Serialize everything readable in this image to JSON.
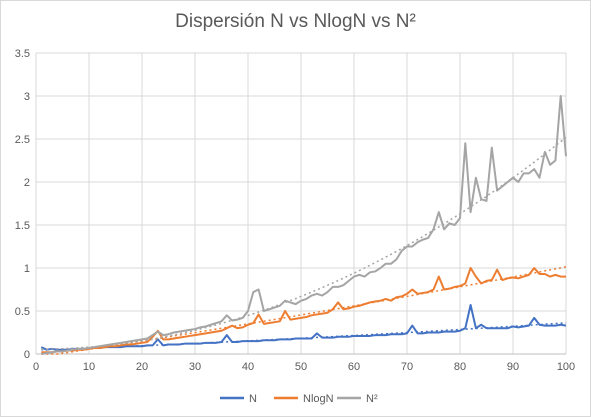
{
  "chart_data": {
    "type": "line",
    "title": "Dispersión N vs NlogN vs N²",
    "xlabel": "",
    "ylabel": "",
    "xlim": [
      0,
      100
    ],
    "ylim": [
      0,
      3.5
    ],
    "x_ticks": [
      0,
      10,
      20,
      30,
      40,
      50,
      60,
      70,
      80,
      90,
      100
    ],
    "y_ticks": [
      0,
      0.5,
      1,
      1.5,
      2,
      2.5,
      3,
      3.5
    ],
    "y_tick_labels": [
      "0",
      "0.5",
      "1",
      "1.5",
      "2",
      "2.5",
      "3",
      "3.5"
    ],
    "grid": true,
    "legend_position": "bottom",
    "trendlines": true,
    "x": [
      1,
      2,
      3,
      4,
      5,
      6,
      7,
      8,
      9,
      10,
      11,
      12,
      13,
      14,
      15,
      16,
      17,
      18,
      19,
      20,
      21,
      22,
      23,
      24,
      25,
      26,
      27,
      28,
      29,
      30,
      31,
      32,
      33,
      34,
      35,
      36,
      37,
      38,
      39,
      40,
      41,
      42,
      43,
      44,
      45,
      46,
      47,
      48,
      49,
      50,
      51,
      52,
      53,
      54,
      55,
      56,
      57,
      58,
      59,
      60,
      61,
      62,
      63,
      64,
      65,
      66,
      67,
      68,
      69,
      70,
      71,
      72,
      73,
      74,
      75,
      76,
      77,
      78,
      79,
      80,
      81,
      82,
      83,
      84,
      85,
      86,
      87,
      88,
      89,
      90,
      91,
      92,
      93,
      94,
      95,
      96,
      97,
      98,
      99,
      100
    ],
    "series": [
      {
        "name": "N",
        "color": "#4472c4",
        "values": [
          0.08,
          0.05,
          0.06,
          0.05,
          0.05,
          0.05,
          0.06,
          0.06,
          0.06,
          0.07,
          0.07,
          0.07,
          0.08,
          0.08,
          0.08,
          0.08,
          0.09,
          0.09,
          0.09,
          0.09,
          0.1,
          0.1,
          0.17,
          0.1,
          0.11,
          0.11,
          0.11,
          0.12,
          0.12,
          0.12,
          0.12,
          0.13,
          0.13,
          0.13,
          0.14,
          0.22,
          0.14,
          0.14,
          0.15,
          0.15,
          0.15,
          0.15,
          0.16,
          0.16,
          0.16,
          0.17,
          0.17,
          0.17,
          0.18,
          0.18,
          0.18,
          0.18,
          0.24,
          0.19,
          0.19,
          0.19,
          0.2,
          0.2,
          0.2,
          0.21,
          0.21,
          0.21,
          0.21,
          0.22,
          0.22,
          0.22,
          0.23,
          0.23,
          0.23,
          0.24,
          0.33,
          0.24,
          0.24,
          0.25,
          0.25,
          0.25,
          0.26,
          0.26,
          0.26,
          0.27,
          0.3,
          0.57,
          0.3,
          0.34,
          0.3,
          0.3,
          0.3,
          0.3,
          0.3,
          0.32,
          0.31,
          0.32,
          0.33,
          0.42,
          0.34,
          0.33,
          0.33,
          0.33,
          0.34,
          0.33
        ]
      },
      {
        "name": "NlogN",
        "color": "#ed7d31",
        "values": [
          0.02,
          0.02,
          0.02,
          0.03,
          0.03,
          0.04,
          0.04,
          0.05,
          0.05,
          0.06,
          0.07,
          0.07,
          0.08,
          0.09,
          0.09,
          0.1,
          0.11,
          0.11,
          0.12,
          0.13,
          0.14,
          0.2,
          0.27,
          0.17,
          0.17,
          0.18,
          0.19,
          0.2,
          0.21,
          0.22,
          0.23,
          0.24,
          0.25,
          0.26,
          0.27,
          0.3,
          0.33,
          0.3,
          0.31,
          0.34,
          0.36,
          0.46,
          0.35,
          0.36,
          0.37,
          0.38,
          0.5,
          0.4,
          0.41,
          0.42,
          0.43,
          0.45,
          0.46,
          0.47,
          0.48,
          0.52,
          0.6,
          0.52,
          0.53,
          0.55,
          0.56,
          0.58,
          0.6,
          0.61,
          0.62,
          0.64,
          0.62,
          0.66,
          0.67,
          0.7,
          0.75,
          0.7,
          0.71,
          0.72,
          0.75,
          0.9,
          0.75,
          0.76,
          0.78,
          0.79,
          0.82,
          1.0,
          0.9,
          0.82,
          0.85,
          0.86,
          0.98,
          0.86,
          0.88,
          0.89,
          0.88,
          0.9,
          0.92,
          1.0,
          0.93,
          0.93,
          0.9,
          0.92,
          0.9,
          0.9
        ]
      },
      {
        "name": "N²",
        "color": "#a5a5a5",
        "values": [
          0.0,
          0.01,
          0.02,
          0.03,
          0.03,
          0.04,
          0.05,
          0.06,
          0.06,
          0.07,
          0.08,
          0.09,
          0.1,
          0.11,
          0.12,
          0.13,
          0.14,
          0.15,
          0.16,
          0.17,
          0.18,
          0.22,
          0.26,
          0.22,
          0.23,
          0.25,
          0.26,
          0.27,
          0.28,
          0.29,
          0.31,
          0.32,
          0.34,
          0.36,
          0.38,
          0.45,
          0.39,
          0.4,
          0.42,
          0.5,
          0.72,
          0.75,
          0.5,
          0.52,
          0.54,
          0.56,
          0.62,
          0.6,
          0.58,
          0.62,
          0.64,
          0.68,
          0.7,
          0.68,
          0.72,
          0.78,
          0.78,
          0.8,
          0.85,
          0.9,
          0.92,
          0.9,
          0.95,
          0.96,
          1.0,
          1.05,
          1.05,
          1.1,
          1.2,
          1.25,
          1.25,
          1.3,
          1.33,
          1.35,
          1.45,
          1.65,
          1.45,
          1.52,
          1.5,
          1.58,
          2.45,
          1.65,
          2.05,
          1.8,
          1.78,
          2.4,
          1.9,
          1.95,
          2.0,
          2.05,
          2.0,
          2.1,
          2.1,
          2.15,
          2.05,
          2.35,
          2.2,
          2.25,
          3.0,
          2.3
        ]
      }
    ]
  }
}
